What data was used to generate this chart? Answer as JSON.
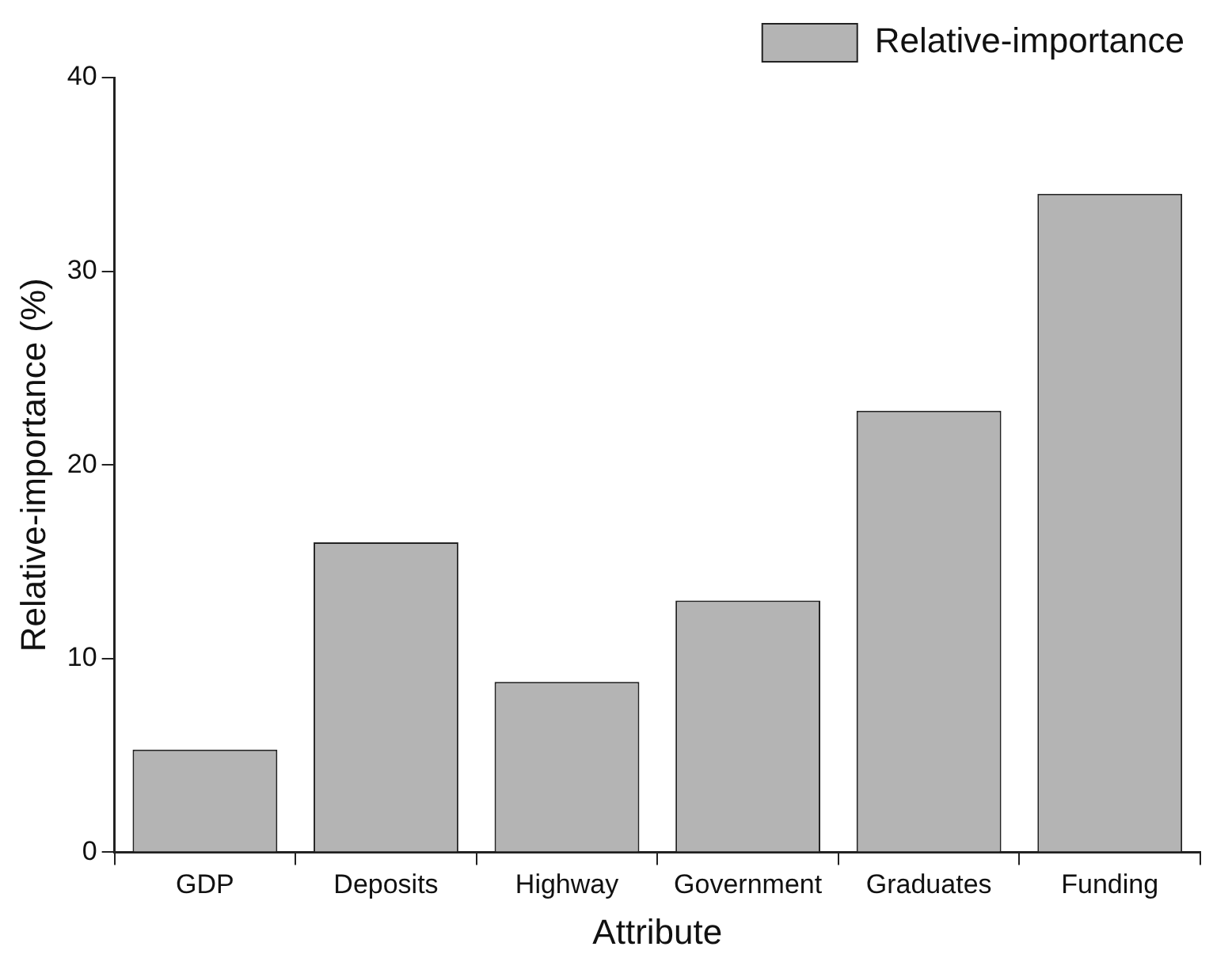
{
  "chart_data": {
    "type": "bar",
    "xlabel": "Attribute",
    "ylabel": "Relative-importance (%)",
    "categories": [
      "GDP",
      "Deposits",
      "Highway",
      "Government",
      "Graduates",
      "Funding"
    ],
    "series": [
      {
        "name": "Relative-importance",
        "color": "#b4b4b4",
        "values": [
          5.3,
          16.0,
          8.8,
          13.0,
          22.8,
          34.0
        ]
      }
    ],
    "ylim": [
      0,
      40
    ],
    "yticks": [
      0,
      10,
      20,
      30,
      40
    ],
    "grid": false,
    "legend": "top right"
  }
}
